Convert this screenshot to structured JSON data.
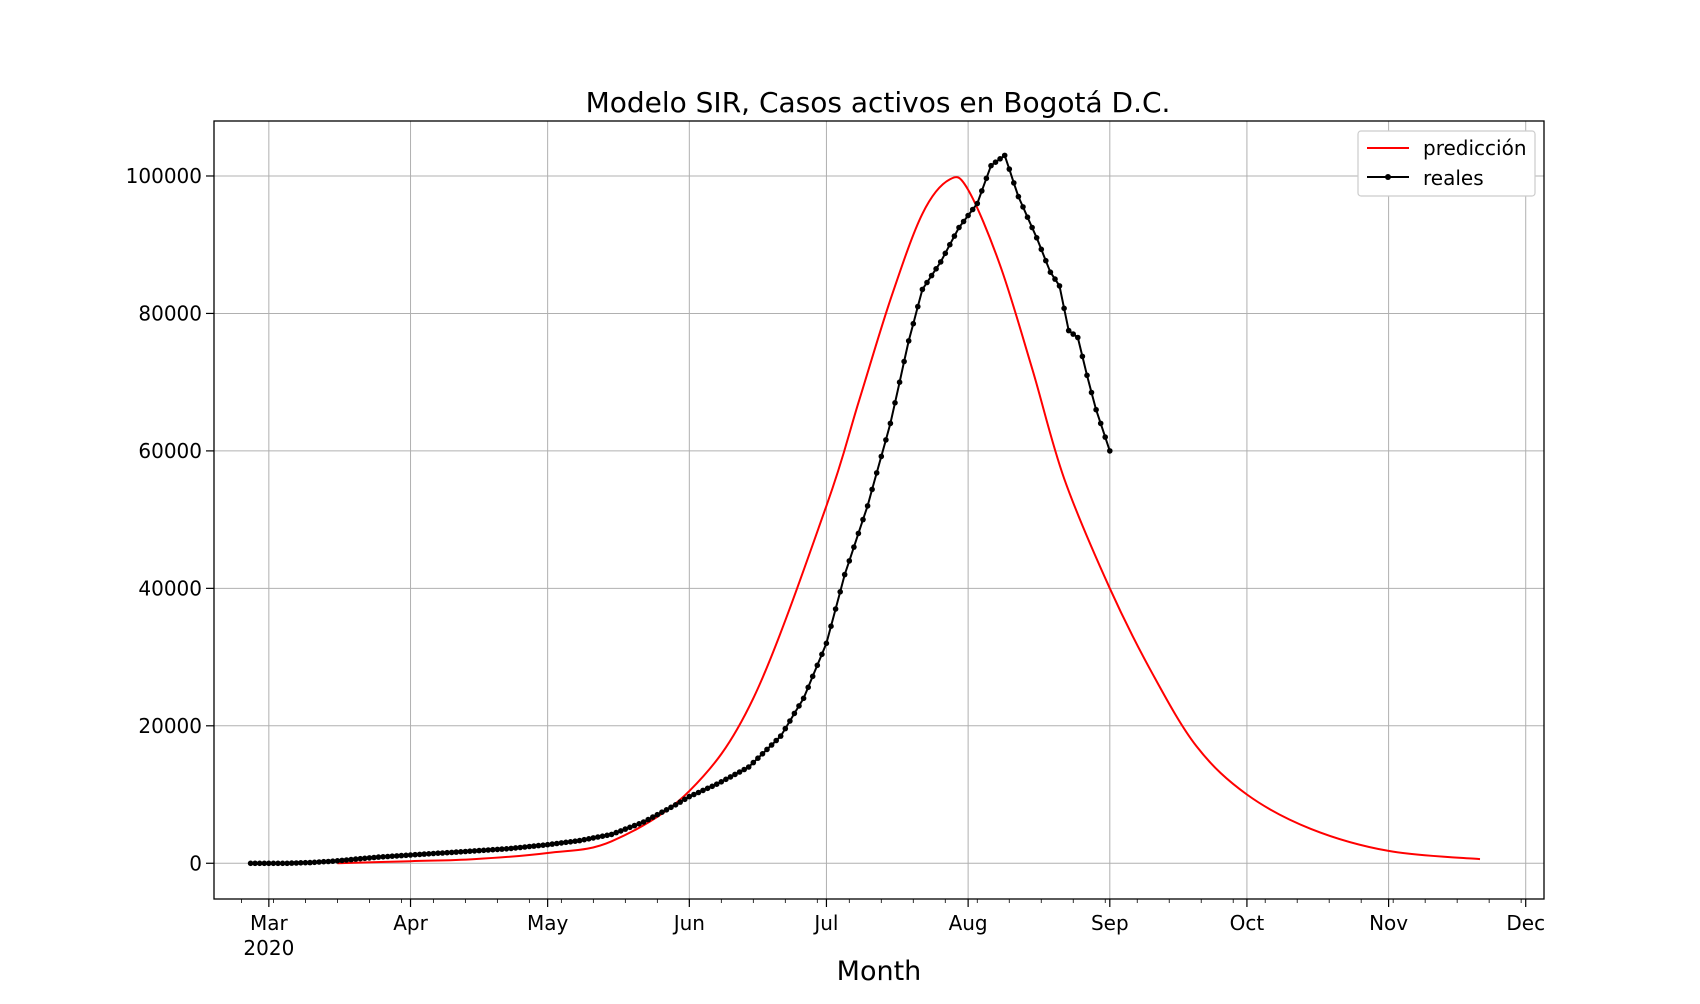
{
  "chart_data": {
    "type": "line",
    "title": "Modelo SIR, Casos activos en Bogotá D.C.",
    "xlabel": "Month",
    "ylabel": "",
    "x_axis_type": "date",
    "xlim": [
      "2020-02-18",
      "2020-12-05"
    ],
    "ylim": [
      -5200,
      108000
    ],
    "grid": true,
    "legend_position": "top-right",
    "x_ticks": [
      {
        "date": "2020-03-01",
        "label": "Mar",
        "sublabel": "2020"
      },
      {
        "date": "2020-04-01",
        "label": "Apr"
      },
      {
        "date": "2020-05-01",
        "label": "May"
      },
      {
        "date": "2020-06-01",
        "label": "Jun"
      },
      {
        "date": "2020-07-01",
        "label": "Jul"
      },
      {
        "date": "2020-08-01",
        "label": "Aug"
      },
      {
        "date": "2020-09-01",
        "label": "Sep"
      },
      {
        "date": "2020-10-01",
        "label": "Oct"
      },
      {
        "date": "2020-11-01",
        "label": "Nov"
      },
      {
        "date": "2020-12-01",
        "label": "Dec"
      }
    ],
    "y_ticks": [
      0,
      20000,
      40000,
      60000,
      80000,
      100000
    ],
    "series": [
      {
        "name": "predicción",
        "color": "#ff0000",
        "style": "line",
        "points": [
          [
            "2020-03-16",
            0
          ],
          [
            "2020-04-01",
            300
          ],
          [
            "2020-04-15",
            600
          ],
          [
            "2020-05-01",
            1500
          ],
          [
            "2020-05-15",
            3200
          ],
          [
            "2020-06-01",
            10500
          ],
          [
            "2020-06-15",
            24000
          ],
          [
            "2020-07-01",
            52000
          ],
          [
            "2020-07-08",
            67000
          ],
          [
            "2020-07-15",
            82000
          ],
          [
            "2020-07-22",
            94500
          ],
          [
            "2020-07-28",
            99500
          ],
          [
            "2020-08-01",
            98000
          ],
          [
            "2020-08-08",
            87000
          ],
          [
            "2020-08-15",
            72000
          ],
          [
            "2020-08-22",
            56000
          ],
          [
            "2020-09-01",
            40000
          ],
          [
            "2020-09-10",
            28000
          ],
          [
            "2020-09-20",
            17000
          ],
          [
            "2020-10-01",
            10000
          ],
          [
            "2020-10-15",
            5000
          ],
          [
            "2020-11-01",
            1800
          ],
          [
            "2020-11-21",
            600
          ]
        ]
      },
      {
        "name": "reales",
        "color": "#000000",
        "style": "line-marker",
        "points": [
          [
            "2020-02-26",
            0
          ],
          [
            "2020-03-05",
            0
          ],
          [
            "2020-03-10",
            100
          ],
          [
            "2020-03-15",
            300
          ],
          [
            "2020-03-20",
            600
          ],
          [
            "2020-03-25",
            900
          ],
          [
            "2020-04-01",
            1200
          ],
          [
            "2020-04-08",
            1500
          ],
          [
            "2020-04-15",
            1800
          ],
          [
            "2020-04-22",
            2100
          ],
          [
            "2020-05-01",
            2700
          ],
          [
            "2020-05-08",
            3300
          ],
          [
            "2020-05-15",
            4200
          ],
          [
            "2020-05-22",
            6000
          ],
          [
            "2020-05-29",
            8500
          ],
          [
            "2020-06-01",
            9700
          ],
          [
            "2020-06-07",
            11500
          ],
          [
            "2020-06-14",
            14000
          ],
          [
            "2020-06-21",
            18500
          ],
          [
            "2020-06-26",
            24000
          ],
          [
            "2020-07-01",
            32000
          ],
          [
            "2020-07-05",
            42000
          ],
          [
            "2020-07-10",
            52000
          ],
          [
            "2020-07-15",
            64000
          ],
          [
            "2020-07-19",
            76000
          ],
          [
            "2020-07-22",
            83500
          ],
          [
            "2020-07-26",
            87500
          ],
          [
            "2020-07-30",
            92500
          ],
          [
            "2020-08-03",
            96000
          ],
          [
            "2020-08-06",
            101500
          ],
          [
            "2020-08-09",
            103000
          ],
          [
            "2020-08-12",
            97000
          ],
          [
            "2020-08-16",
            91000
          ],
          [
            "2020-08-19",
            86000
          ],
          [
            "2020-08-21",
            84000
          ],
          [
            "2020-08-23",
            77500
          ],
          [
            "2020-08-25",
            76500
          ],
          [
            "2020-08-27",
            71000
          ],
          [
            "2020-08-29",
            66000
          ],
          [
            "2020-09-01",
            60000
          ]
        ]
      }
    ]
  }
}
